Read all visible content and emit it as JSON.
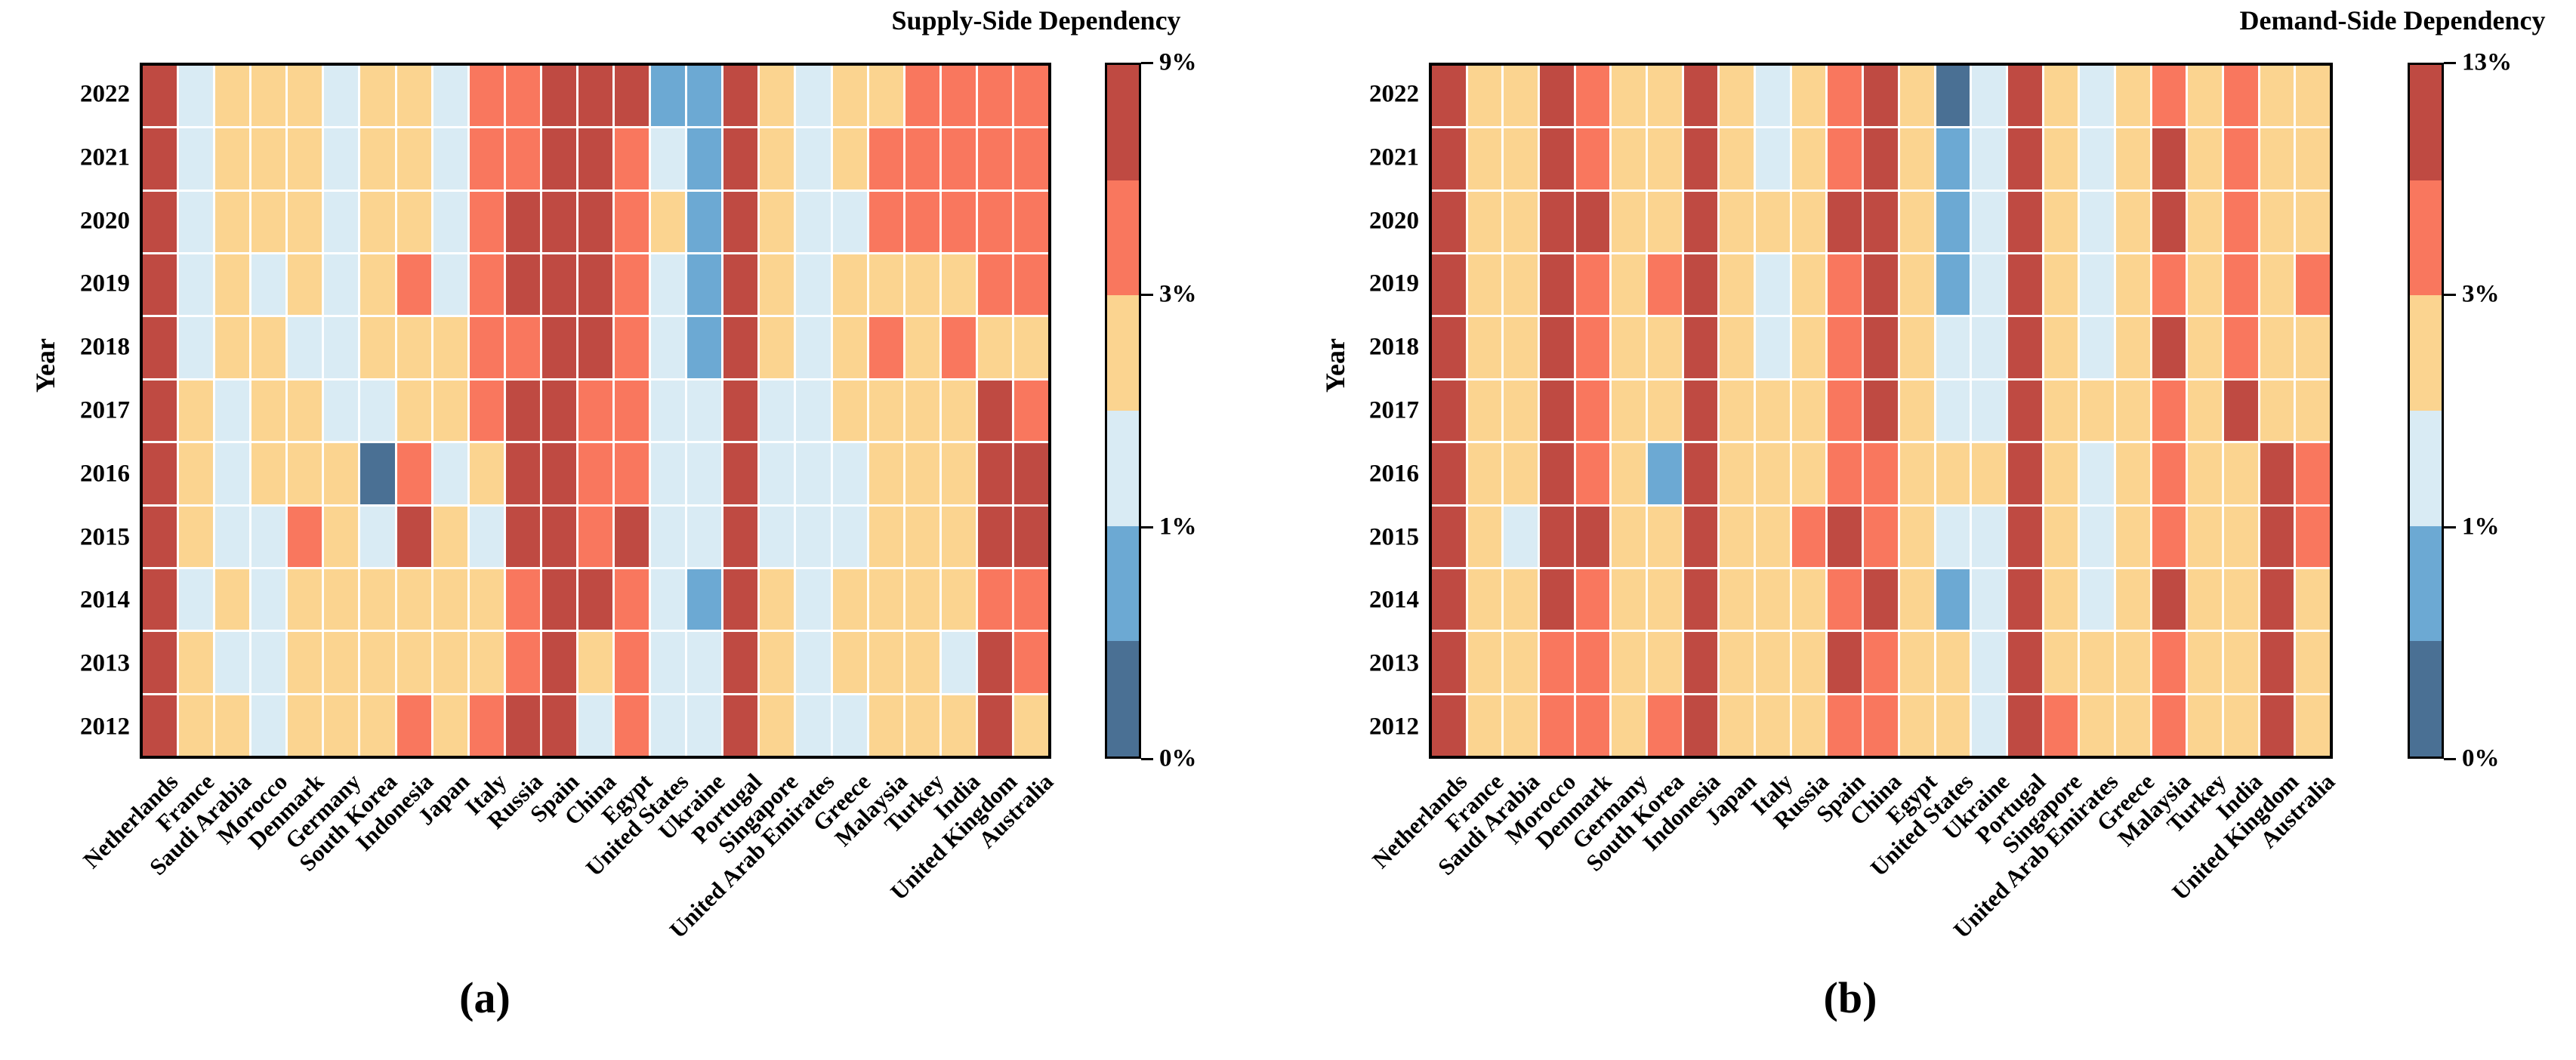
{
  "ylabel": "Year",
  "palette": {
    "class_names": [
      "dark-blue",
      "medium-blue",
      "light-blue",
      "tan",
      "salmon",
      "dark-red"
    ],
    "colors": [
      "#4a7094",
      "#6ca9d3",
      "#d9ebf4",
      "#fbd490",
      "#f9775e",
      "#bf4a42"
    ]
  },
  "panels": [
    {
      "title": "Supply-Side Dependency",
      "sublabel": "(a)",
      "colorbar_ticks": [
        "9%",
        "3%",
        "1%",
        "0%"
      ],
      "colorbar_segments_top_to_bottom": [
        5,
        4,
        3,
        2,
        1,
        0
      ]
    },
    {
      "title": "Demand-Side Dependency",
      "sublabel": "(b)",
      "colorbar_ticks": [
        "13%",
        "3%",
        "1%",
        "0%"
      ],
      "colorbar_segments_top_to_bottom": [
        5,
        4,
        3,
        2,
        1,
        0
      ]
    }
  ],
  "chart_data": [
    {
      "type": "heatmap",
      "title": "Supply-Side Dependency",
      "xlabel": "",
      "ylabel": "Year",
      "x_categories": [
        "Netherlands",
        "France",
        "Saudi Arabia",
        "Morocco",
        "Denmark",
        "Germany",
        "South Korea",
        "Indonesia",
        "Japan",
        "Italy",
        "Russia",
        "Spain",
        "China",
        "Egypt",
        "United States",
        "Ukraine",
        "Portugal",
        "Singapore",
        "United Arab Emirates",
        "Greece",
        "Malaysia",
        "Turkey",
        "India",
        "United Kingdom",
        "Australia"
      ],
      "y_categories": [
        "2022",
        "2021",
        "2020",
        "2019",
        "2018",
        "2017",
        "2016",
        "2015",
        "2014",
        "2013",
        "2012"
      ],
      "legend_position": "right",
      "colorbar_range": [
        "0%",
        "9%"
      ],
      "colorbar_tick_values": {
        "top": "9%",
        "two_thirds": "3%",
        "one_third": "1%",
        "bottom": "0%"
      },
      "value_bins_note": "cell values are color-class indices 0..5 mapping to colorbar segments bottom(0%)..top(9%): 0=darkest blue (~0-0.5%),1=medium blue (~0.5-1%),2=light blue (~1-2%),3=tan (~2-3%),4=salmon (~3-5%),5=dark red (~5-9%)",
      "values": [
        [
          5,
          2,
          3,
          3,
          3,
          2,
          3,
          3,
          2,
          4,
          4,
          5,
          5,
          5,
          1,
          1,
          5,
          3,
          2,
          3,
          3,
          4,
          4,
          4,
          4
        ],
        [
          5,
          2,
          3,
          3,
          3,
          2,
          3,
          3,
          2,
          4,
          4,
          5,
          5,
          4,
          2,
          1,
          5,
          3,
          2,
          3,
          4,
          4,
          4,
          4,
          4
        ],
        [
          5,
          2,
          3,
          3,
          3,
          2,
          3,
          3,
          2,
          4,
          5,
          5,
          5,
          4,
          3,
          1,
          5,
          3,
          2,
          2,
          4,
          4,
          4,
          4,
          4
        ],
        [
          5,
          2,
          3,
          2,
          3,
          2,
          3,
          4,
          2,
          4,
          5,
          5,
          5,
          4,
          2,
          1,
          5,
          3,
          2,
          3,
          3,
          3,
          3,
          4,
          4
        ],
        [
          5,
          2,
          3,
          3,
          2,
          2,
          3,
          3,
          3,
          4,
          4,
          5,
          5,
          4,
          2,
          1,
          5,
          3,
          2,
          3,
          4,
          3,
          4,
          3,
          3
        ],
        [
          5,
          3,
          2,
          3,
          3,
          2,
          2,
          3,
          3,
          4,
          5,
          5,
          4,
          4,
          2,
          2,
          5,
          2,
          2,
          3,
          3,
          3,
          3,
          5,
          4
        ],
        [
          5,
          3,
          2,
          3,
          3,
          3,
          0,
          4,
          2,
          3,
          5,
          5,
          4,
          4,
          2,
          2,
          5,
          2,
          2,
          2,
          3,
          3,
          3,
          5,
          5
        ],
        [
          5,
          3,
          2,
          2,
          4,
          3,
          2,
          5,
          3,
          2,
          5,
          5,
          4,
          5,
          2,
          2,
          5,
          2,
          2,
          2,
          3,
          3,
          3,
          5,
          5
        ],
        [
          5,
          2,
          3,
          2,
          3,
          3,
          3,
          3,
          3,
          3,
          4,
          5,
          5,
          4,
          2,
          1,
          5,
          3,
          2,
          3,
          3,
          3,
          3,
          4,
          4
        ],
        [
          5,
          3,
          2,
          2,
          3,
          3,
          3,
          3,
          3,
          3,
          4,
          5,
          3,
          4,
          2,
          2,
          5,
          3,
          2,
          3,
          3,
          3,
          2,
          5,
          4
        ],
        [
          5,
          3,
          3,
          2,
          3,
          3,
          3,
          4,
          3,
          4,
          5,
          5,
          2,
          4,
          2,
          2,
          5,
          3,
          2,
          2,
          3,
          3,
          3,
          5,
          3
        ]
      ]
    },
    {
      "type": "heatmap",
      "title": "Demand-Side Dependency",
      "xlabel": "",
      "ylabel": "Year",
      "x_categories": [
        "Netherlands",
        "France",
        "Saudi Arabia",
        "Morocco",
        "Denmark",
        "Germany",
        "South Korea",
        "Indonesia",
        "Japan",
        "Italy",
        "Russia",
        "Spain",
        "China",
        "Egypt",
        "United States",
        "Ukraine",
        "Portugal",
        "Singapore",
        "United Arab Emirates",
        "Greece",
        "Malaysia",
        "Turkey",
        "India",
        "United Kingdom",
        "Australia"
      ],
      "y_categories": [
        "2022",
        "2021",
        "2020",
        "2019",
        "2018",
        "2017",
        "2016",
        "2015",
        "2014",
        "2013",
        "2012"
      ],
      "legend_position": "right",
      "colorbar_range": [
        "0%",
        "13%"
      ],
      "colorbar_tick_values": {
        "top": "13%",
        "two_thirds": "3%",
        "one_third": "1%",
        "bottom": "0%"
      },
      "value_bins_note": "cell values are color-class indices 0..5 mapping to colorbar segments bottom(0%)..top(13%)",
      "values": [
        [
          5,
          3,
          3,
          5,
          4,
          3,
          3,
          5,
          3,
          2,
          3,
          4,
          5,
          3,
          0,
          2,
          5,
          3,
          2,
          3,
          4,
          3,
          4,
          3,
          3
        ],
        [
          5,
          3,
          3,
          5,
          4,
          3,
          3,
          5,
          3,
          2,
          3,
          4,
          5,
          3,
          1,
          2,
          5,
          3,
          2,
          3,
          5,
          3,
          4,
          3,
          3
        ],
        [
          5,
          3,
          3,
          5,
          5,
          3,
          3,
          5,
          3,
          3,
          3,
          5,
          5,
          3,
          1,
          2,
          5,
          3,
          2,
          3,
          5,
          3,
          4,
          3,
          3
        ],
        [
          5,
          3,
          3,
          5,
          4,
          3,
          4,
          5,
          3,
          2,
          3,
          4,
          5,
          3,
          1,
          2,
          5,
          3,
          2,
          3,
          4,
          3,
          4,
          3,
          4
        ],
        [
          5,
          3,
          3,
          5,
          4,
          3,
          3,
          5,
          3,
          2,
          3,
          4,
          5,
          3,
          2,
          2,
          5,
          3,
          2,
          3,
          5,
          3,
          4,
          3,
          3
        ],
        [
          5,
          3,
          3,
          5,
          4,
          3,
          3,
          5,
          3,
          3,
          3,
          4,
          5,
          3,
          2,
          2,
          5,
          3,
          3,
          3,
          4,
          3,
          5,
          3,
          3
        ],
        [
          5,
          3,
          3,
          5,
          4,
          3,
          1,
          5,
          3,
          3,
          3,
          4,
          4,
          3,
          3,
          3,
          5,
          3,
          2,
          3,
          4,
          3,
          3,
          5,
          4
        ],
        [
          5,
          3,
          2,
          5,
          5,
          3,
          3,
          5,
          3,
          3,
          4,
          5,
          4,
          3,
          2,
          2,
          5,
          3,
          2,
          3,
          4,
          3,
          3,
          5,
          4
        ],
        [
          5,
          3,
          3,
          5,
          4,
          3,
          3,
          5,
          3,
          3,
          3,
          4,
          5,
          3,
          1,
          2,
          5,
          3,
          2,
          3,
          5,
          3,
          3,
          5,
          3
        ],
        [
          5,
          3,
          3,
          4,
          4,
          3,
          3,
          5,
          3,
          3,
          3,
          5,
          4,
          3,
          3,
          2,
          5,
          3,
          3,
          3,
          4,
          3,
          3,
          5,
          3
        ],
        [
          5,
          3,
          3,
          4,
          4,
          3,
          4,
          5,
          3,
          3,
          3,
          4,
          4,
          3,
          3,
          2,
          5,
          4,
          3,
          3,
          4,
          3,
          3,
          5,
          3
        ]
      ]
    }
  ]
}
